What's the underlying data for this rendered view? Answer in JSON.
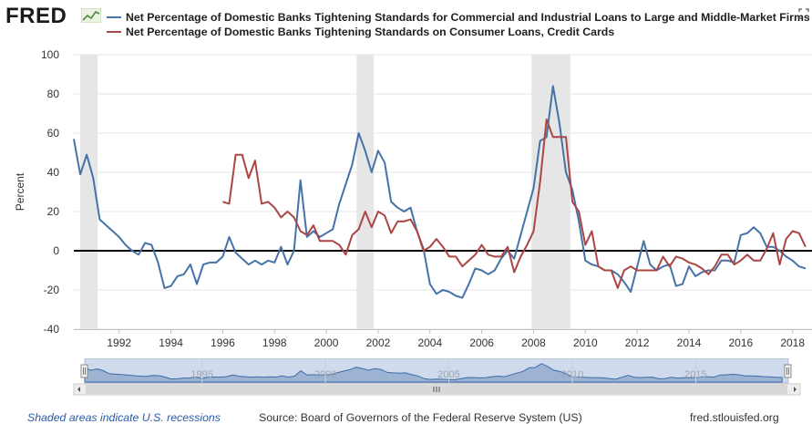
{
  "header": {
    "logo_text": "FRED",
    "logo_icon": "line-chart-icon",
    "fullscreen_icon": "expand-icon"
  },
  "footer": {
    "recession_note": "Shaded areas indicate U.S. recessions",
    "source": "Source: Board of Governors of the Federal Reserve System (US)",
    "site": "fred.stlouisfed.org"
  },
  "navigator": {
    "tick_labels": [
      "1995",
      "2000",
      "2005",
      "2010",
      "2015"
    ],
    "scroll_icon": "grip-icon"
  },
  "chart_data": {
    "type": "line",
    "ylabel": "Percent",
    "xlabel": "",
    "ylim": [
      -40,
      100
    ],
    "xlim": [
      1990.25,
      2018.75
    ],
    "yticks": [
      -40,
      -20,
      0,
      20,
      40,
      60,
      80,
      100
    ],
    "xticks": [
      1992,
      1994,
      1996,
      1998,
      2000,
      2002,
      2004,
      2006,
      2008,
      2010,
      2012,
      2014,
      2016,
      2018
    ],
    "grid": true,
    "zero_line": true,
    "legend_position": "top",
    "recessions": [
      [
        1990.5,
        1991.17
      ],
      [
        2001.17,
        2001.83
      ],
      [
        2007.92,
        2009.42
      ]
    ],
    "colors": {
      "series1": "#4572a7",
      "series2": "#aa4643",
      "recession": "#e6e6e6"
    },
    "series": [
      {
        "name": "Net Percentage of Domestic Banks Tightening Standards for Commercial and Industrial Loans to Large and Middle-Market Firms",
        "points": [
          [
            1990.25,
            57
          ],
          [
            1990.5,
            39
          ],
          [
            1990.75,
            49
          ],
          [
            1991.0,
            37
          ],
          [
            1991.25,
            16
          ],
          [
            1991.5,
            13
          ],
          [
            1991.75,
            10
          ],
          [
            1992.0,
            7
          ],
          [
            1992.25,
            3
          ],
          [
            1992.5,
            0
          ],
          [
            1992.75,
            -2
          ],
          [
            1993.0,
            4
          ],
          [
            1993.25,
            3
          ],
          [
            1993.5,
            -6
          ],
          [
            1993.75,
            -19
          ],
          [
            1994.0,
            -18
          ],
          [
            1994.25,
            -13
          ],
          [
            1994.5,
            -12
          ],
          [
            1994.75,
            -7
          ],
          [
            1995.0,
            -17
          ],
          [
            1995.25,
            -7
          ],
          [
            1995.5,
            -6
          ],
          [
            1995.75,
            -6
          ],
          [
            1996.0,
            -3
          ],
          [
            1996.25,
            7
          ],
          [
            1996.5,
            -1
          ],
          [
            1996.75,
            -4
          ],
          [
            1997.0,
            -7
          ],
          [
            1997.25,
            -5
          ],
          [
            1997.5,
            -7
          ],
          [
            1997.75,
            -5
          ],
          [
            1998.0,
            -6
          ],
          [
            1998.25,
            2
          ],
          [
            1998.5,
            -7
          ],
          [
            1998.75,
            0
          ],
          [
            1999.0,
            36
          ],
          [
            1999.25,
            7
          ],
          [
            1999.5,
            10
          ],
          [
            1999.75,
            7
          ],
          [
            2000.0,
            9
          ],
          [
            2000.25,
            11
          ],
          [
            2000.5,
            24
          ],
          [
            2000.75,
            34
          ],
          [
            2001.0,
            44
          ],
          [
            2001.25,
            60
          ],
          [
            2001.5,
            51
          ],
          [
            2001.75,
            40
          ],
          [
            2002.0,
            51
          ],
          [
            2002.25,
            45
          ],
          [
            2002.5,
            25
          ],
          [
            2002.75,
            22
          ],
          [
            2003.0,
            20
          ],
          [
            2003.25,
            22
          ],
          [
            2003.5,
            10
          ],
          [
            2003.75,
            1
          ],
          [
            2004.0,
            -17
          ],
          [
            2004.25,
            -22
          ],
          [
            2004.5,
            -20
          ],
          [
            2004.75,
            -21
          ],
          [
            2005.0,
            -23
          ],
          [
            2005.25,
            -24
          ],
          [
            2005.5,
            -17
          ],
          [
            2005.75,
            -9
          ],
          [
            2006.0,
            -10
          ],
          [
            2006.25,
            -12
          ],
          [
            2006.5,
            -10
          ],
          [
            2006.75,
            -4
          ],
          [
            2007.0,
            0
          ],
          [
            2007.25,
            -4
          ],
          [
            2007.5,
            8
          ],
          [
            2007.75,
            20
          ],
          [
            2008.0,
            32
          ],
          [
            2008.25,
            56
          ],
          [
            2008.5,
            58
          ],
          [
            2008.75,
            84
          ],
          [
            2009.0,
            65
          ],
          [
            2009.25,
            40
          ],
          [
            2009.5,
            31
          ],
          [
            2009.75,
            15
          ],
          [
            2010.0,
            -5
          ],
          [
            2010.25,
            -7
          ],
          [
            2010.5,
            -8
          ],
          [
            2010.75,
            -10
          ],
          [
            2011.0,
            -10
          ],
          [
            2011.25,
            -12
          ],
          [
            2011.5,
            -16
          ],
          [
            2011.75,
            -21
          ],
          [
            2012.0,
            -8
          ],
          [
            2012.25,
            5
          ],
          [
            2012.5,
            -7
          ],
          [
            2012.75,
            -10
          ],
          [
            2013.0,
            -8
          ],
          [
            2013.25,
            -7
          ],
          [
            2013.5,
            -18
          ],
          [
            2013.75,
            -17
          ],
          [
            2014.0,
            -8
          ],
          [
            2014.25,
            -13
          ],
          [
            2014.5,
            -11
          ],
          [
            2014.75,
            -10
          ],
          [
            2015.0,
            -10
          ],
          [
            2015.25,
            -5
          ],
          [
            2015.5,
            -5
          ],
          [
            2015.75,
            -6
          ],
          [
            2016.0,
            8
          ],
          [
            2016.25,
            9
          ],
          [
            2016.5,
            12
          ],
          [
            2016.75,
            9
          ],
          [
            2017.0,
            2
          ],
          [
            2017.25,
            2
          ],
          [
            2017.5,
            0
          ],
          [
            2017.75,
            -3
          ],
          [
            2018.0,
            -5
          ],
          [
            2018.25,
            -8
          ],
          [
            2018.5,
            -9
          ]
        ]
      },
      {
        "name": "Net Percentage of Domestic Banks Tightening Standards on Consumer Loans, Credit Cards",
        "points": [
          [
            1996.0,
            25
          ],
          [
            1996.25,
            24
          ],
          [
            1996.5,
            49
          ],
          [
            1996.75,
            49
          ],
          [
            1997.0,
            37
          ],
          [
            1997.25,
            46
          ],
          [
            1997.5,
            24
          ],
          [
            1997.75,
            25
          ],
          [
            1998.0,
            22
          ],
          [
            1998.25,
            17
          ],
          [
            1998.5,
            20
          ],
          [
            1998.75,
            17
          ],
          [
            1999.0,
            10
          ],
          [
            1999.25,
            8
          ],
          [
            1999.5,
            13
          ],
          [
            1999.75,
            5
          ],
          [
            2000.0,
            5
          ],
          [
            2000.25,
            5
          ],
          [
            2000.5,
            3
          ],
          [
            2000.75,
            -2
          ],
          [
            2001.0,
            8
          ],
          [
            2001.25,
            11
          ],
          [
            2001.5,
            20
          ],
          [
            2001.75,
            12
          ],
          [
            2002.0,
            20
          ],
          [
            2002.25,
            18
          ],
          [
            2002.5,
            9
          ],
          [
            2002.75,
            15
          ],
          [
            2003.0,
            15
          ],
          [
            2003.25,
            16
          ],
          [
            2003.5,
            10
          ],
          [
            2003.75,
            0
          ],
          [
            2004.0,
            2
          ],
          [
            2004.25,
            6
          ],
          [
            2004.5,
            2
          ],
          [
            2004.75,
            -3
          ],
          [
            2005.0,
            -3
          ],
          [
            2005.25,
            -8
          ],
          [
            2005.5,
            -5
          ],
          [
            2005.75,
            -2
          ],
          [
            2006.0,
            3
          ],
          [
            2006.25,
            -2
          ],
          [
            2006.5,
            -3
          ],
          [
            2006.75,
            -3
          ],
          [
            2007.0,
            2
          ],
          [
            2007.25,
            -11
          ],
          [
            2007.5,
            -3
          ],
          [
            2007.75,
            3
          ],
          [
            2008.0,
            10
          ],
          [
            2008.25,
            35
          ],
          [
            2008.5,
            67
          ],
          [
            2008.75,
            58
          ],
          [
            2009.0,
            58
          ],
          [
            2009.25,
            58
          ],
          [
            2009.5,
            25
          ],
          [
            2009.75,
            20
          ],
          [
            2010.0,
            3
          ],
          [
            2010.25,
            10
          ],
          [
            2010.5,
            -8
          ],
          [
            2010.75,
            -10
          ],
          [
            2011.0,
            -10
          ],
          [
            2011.25,
            -19
          ],
          [
            2011.5,
            -10
          ],
          [
            2011.75,
            -8
          ],
          [
            2012.0,
            -10
          ],
          [
            2012.25,
            -10
          ],
          [
            2012.5,
            -10
          ],
          [
            2012.75,
            -10
          ],
          [
            2013.0,
            -3
          ],
          [
            2013.25,
            -8
          ],
          [
            2013.5,
            -3
          ],
          [
            2013.75,
            -4
          ],
          [
            2014.0,
            -6
          ],
          [
            2014.25,
            -7
          ],
          [
            2014.5,
            -9
          ],
          [
            2014.75,
            -12
          ],
          [
            2015.0,
            -8
          ],
          [
            2015.25,
            -2
          ],
          [
            2015.5,
            -2
          ],
          [
            2015.75,
            -7
          ],
          [
            2016.0,
            -5
          ],
          [
            2016.25,
            -2
          ],
          [
            2016.5,
            -5
          ],
          [
            2016.75,
            -5
          ],
          [
            2017.0,
            1
          ],
          [
            2017.25,
            9
          ],
          [
            2017.5,
            -7
          ],
          [
            2017.75,
            6
          ],
          [
            2018.0,
            10
          ],
          [
            2018.25,
            9
          ],
          [
            2018.5,
            2
          ]
        ]
      }
    ]
  }
}
